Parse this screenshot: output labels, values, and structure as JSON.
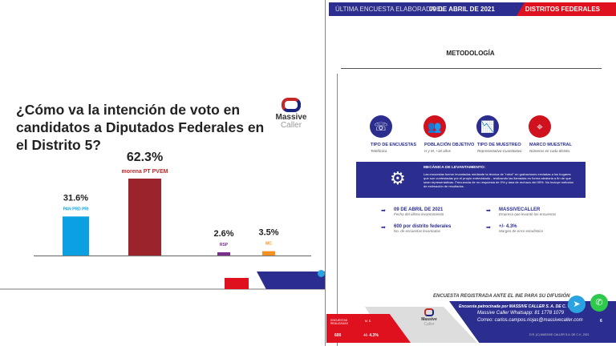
{
  "left_slide": {
    "title": "¿Cómo va la intención de voto en candidatos a Diputados Federales en el Distrito 5?",
    "logo": {
      "line1": "Massive",
      "line2": "Caller"
    },
    "party_tags": [
      "PAN PRD PRI",
      "morena PT PVEM",
      "RSP",
      "MC"
    ]
  },
  "chart_data": {
    "type": "bar",
    "title": "¿Cómo va la intención de voto en candidatos a Diputados Federales en el Distrito 5?",
    "categories": [
      "PAN-PRD-PRI",
      "MORENA-PT-PVEM",
      "RSP",
      "MC"
    ],
    "values": [
      31.6,
      62.3,
      2.6,
      3.5
    ],
    "labels": [
      "31.6%",
      "62.3%",
      "2.6%",
      "3.5%"
    ],
    "colors": [
      "#0aa0e2",
      "#9b242c",
      "#7b2d8e",
      "#f7901e"
    ],
    "ylim": [
      0,
      70
    ],
    "xlabel": "",
    "ylabel": ""
  },
  "right_slide": {
    "header_left": "ÚLTIMA ENCUESTA ELABORADA EL",
    "header_date": "09 DE ABRIL DE 2021",
    "header_right": "DISTRITOS FEDERALES",
    "heading": "METODOLOGÍA",
    "icons": [
      {
        "title": "TIPO DE ENCUESTAS",
        "sub": "Telefónica",
        "icon": "phone-icon",
        "color": "#2b2d8f"
      },
      {
        "title": "POBLACIÓN OBJETIVO",
        "sub": "H y M, +18 años",
        "icon": "people-icon",
        "color": "#d0121f"
      },
      {
        "title": "TIPO DE MUESTREO",
        "sub": "Representativo-Cuantitativo",
        "icon": "chart-icon",
        "color": "#2b2d8f"
      },
      {
        "title": "MARCO MUESTRAL",
        "sub": "Números en cada distrito.",
        "icon": "pin-icon",
        "color": "#d0121f"
      }
    ],
    "mechanics_title": "MECÁNICA DE LEVANTAMIENTO:",
    "mechanics_body": "Las encuestas fueron levantadas mediante la técnica de \"robot\" en grabaciones enviadas a los hogares que son contestadas por el propio entrevistado - realizando las llamadas en forma aleatoria a fin de que sean representativas. Frecuencia de no respuesta de 0% y tasa de rechazo del 95%. No incluye métodos de estimación de resultados.",
    "items": [
      {
        "value": "09 DE ABRIL DE 2021",
        "desc": "Fecha del último levantamiento"
      },
      {
        "value": "MASSIVECALLER",
        "desc": "Empresa que levantó las encuestas"
      },
      {
        "value": "600 por distrito federales",
        "desc": "No. de encuestas levantadas"
      },
      {
        "value": "+/- 4.3%",
        "desc": "Margen de error estadístico"
      }
    ],
    "ine": "ENCUESTA REGISTRADA ANTE EL INE PARA SU DIFUSIÓN",
    "sponsor": "Encuesta patrocinada por MASSIVE CALLER S. A. DE C. V.",
    "whatsapp": "Massive Caller Whatsapp: 81 1778 1079",
    "email": "Correo: carlos.campos.riojas@massivecaller.com",
    "page": "6",
    "copyright": "D.R. (C) MASSIVE CALLER S.A. DE C.V., 2021",
    "table": {
      "h1": "ENCUESTAS REALIZADAS",
      "h2": "M. E.",
      "v1": "600",
      "v2": "+/- 4.3%"
    },
    "logo": {
      "line1": "Massive",
      "line2": "Caller"
    }
  }
}
